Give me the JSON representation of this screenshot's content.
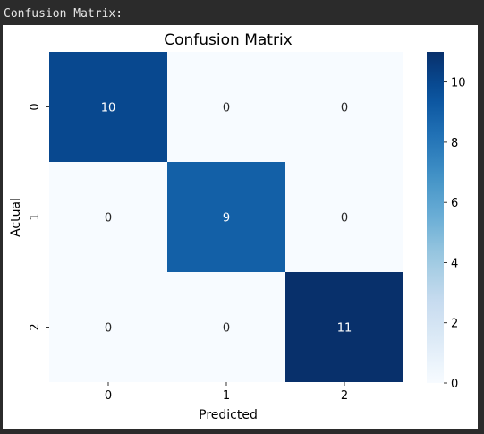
{
  "console": {
    "header": "Confusion Matrix:"
  },
  "chart_data": {
    "type": "heatmap",
    "title": "Confusion Matrix",
    "xlabel": "Predicted",
    "ylabel": "Actual",
    "x_categories": [
      "0",
      "1",
      "2"
    ],
    "y_categories": [
      "0",
      "1",
      "2"
    ],
    "values": [
      [
        10,
        0,
        0
      ],
      [
        0,
        9,
        0
      ],
      [
        0,
        0,
        11
      ]
    ],
    "colormap": "Blues",
    "colorbar": {
      "min": 0,
      "max": 11,
      "ticks": [
        0,
        2,
        4,
        6,
        8,
        10
      ]
    },
    "grid": false,
    "colors": {
      "low": "#f7fbff",
      "high": "#08306b"
    }
  }
}
